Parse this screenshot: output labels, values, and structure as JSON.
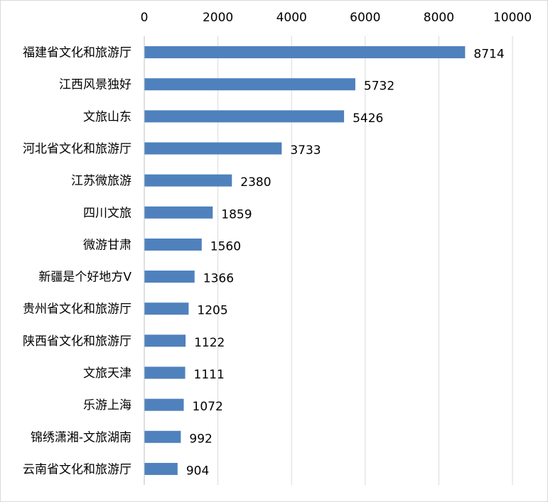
{
  "chart_data": {
    "type": "bar",
    "orientation": "horizontal",
    "title": "",
    "xlabel": "",
    "ylabel": "",
    "xlim": [
      0,
      10000
    ],
    "xticks": [
      0,
      2000,
      4000,
      6000,
      8000,
      10000
    ],
    "x_axis_position": "top",
    "grid": "vertical-major",
    "legend": "none",
    "bar_color": "#4F81BD",
    "gridline_color": "#d9d9d9",
    "data_labels": true,
    "categories": [
      "福建省文化和旅游厅",
      "江西风景独好",
      "文旅山东",
      "河北省文化和旅游厅",
      "江苏微旅游",
      "四川文旅",
      "微游甘肃",
      "新疆是个好地方V",
      "贵州省文化和旅游厅",
      "陕西省文化和旅游厅",
      "文旅天津",
      "乐游上海",
      "锦绣潇湘-文旅湖南",
      "云南省文化和旅游厅"
    ],
    "values": [
      8714,
      5732,
      5426,
      3733,
      2380,
      1859,
      1560,
      1366,
      1205,
      1122,
      1111,
      1072,
      992,
      904
    ]
  }
}
